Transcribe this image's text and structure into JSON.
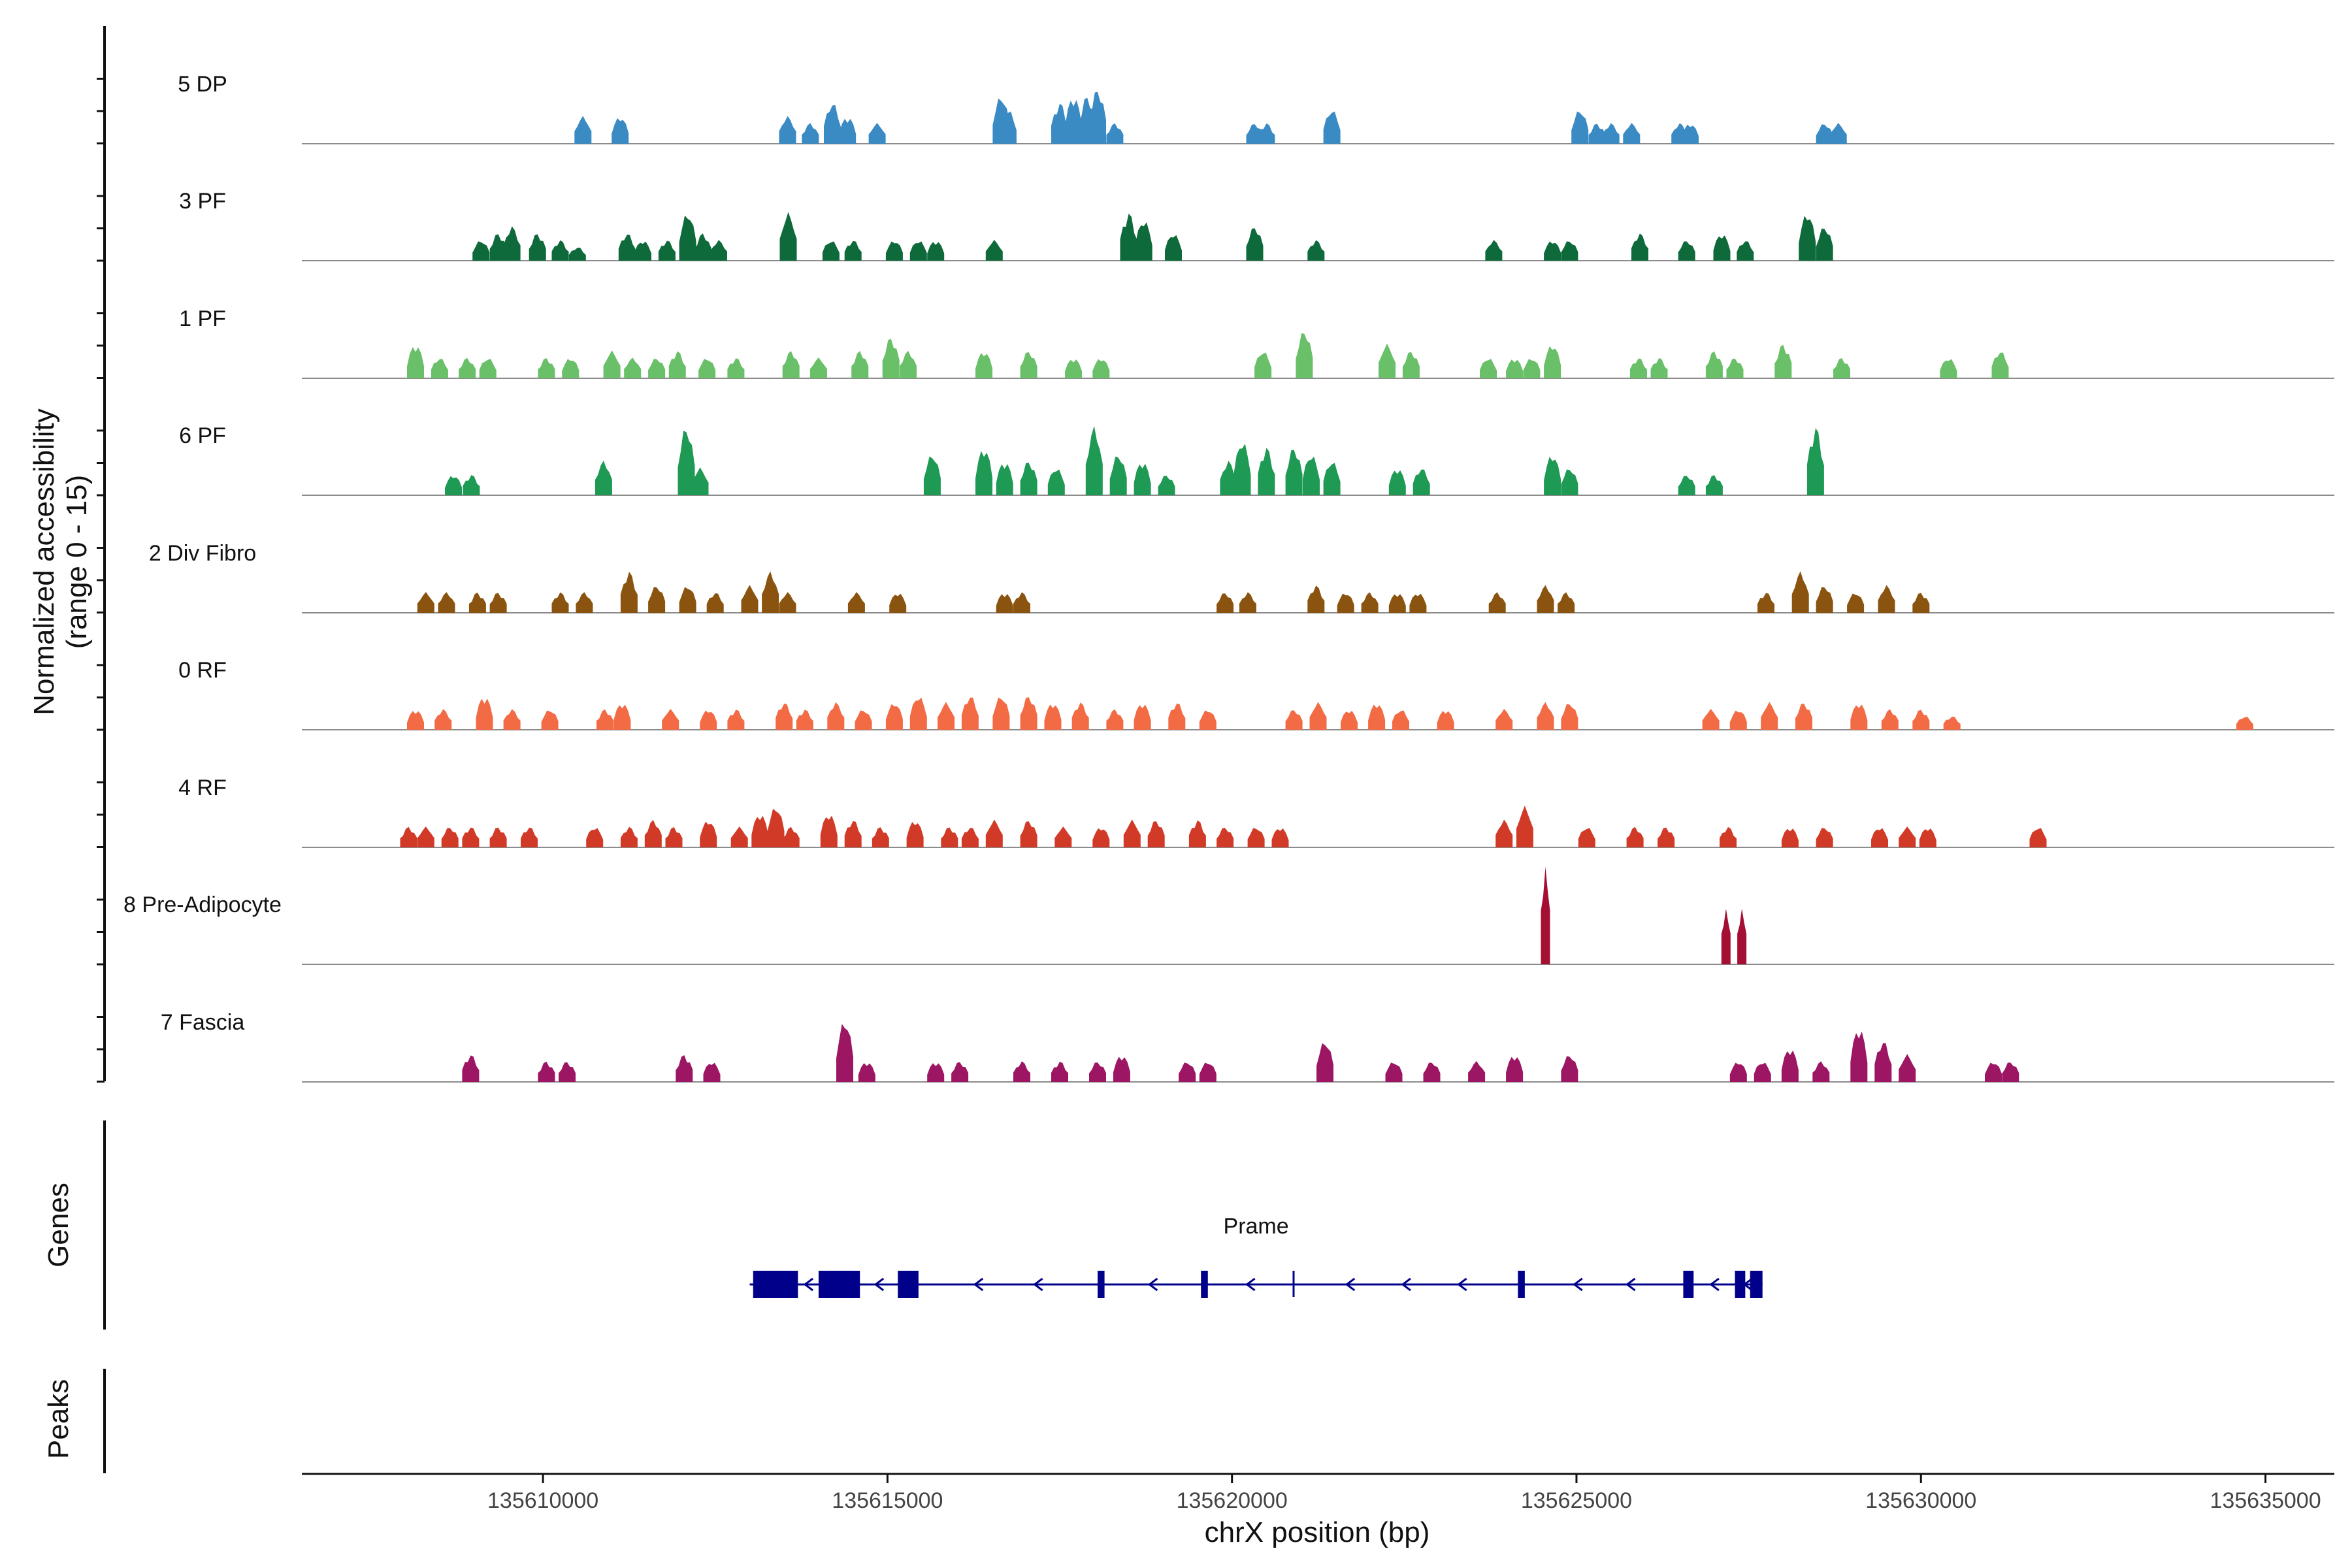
{
  "chart_data": {
    "type": "area",
    "title": "",
    "ylabel_line1": "Normalized accessibility",
    "ylabel_line2": "(range 0 - 15)",
    "xlabel": "chrX position (bp)",
    "ylim": [
      0,
      15
    ],
    "xlim": [
      135606500,
      135636000
    ],
    "x_ticks": [
      135610000,
      135615000,
      135620000,
      135625000,
      135630000,
      135635000
    ],
    "x_tick_labels": [
      "135610000",
      "135615000",
      "135620000",
      "135625000",
      "135630000",
      "135635000"
    ],
    "tracks": [
      {
        "name": "5 DP",
        "color": "#3a8ac4",
        "peaks": [
          [
            135610580,
            4
          ],
          [
            135611120,
            4
          ],
          [
            135613550,
            4
          ],
          [
            135613880,
            3
          ],
          [
            135614200,
            6
          ],
          [
            135614420,
            4
          ],
          [
            135614850,
            3
          ],
          [
            135616650,
            7
          ],
          [
            135616750,
            5
          ],
          [
            135617500,
            6
          ],
          [
            135617700,
            7
          ],
          [
            135617900,
            7
          ],
          [
            135618050,
            8
          ],
          [
            135618300,
            3
          ],
          [
            135620330,
            3
          ],
          [
            135620500,
            3
          ],
          [
            135621450,
            5
          ],
          [
            135625050,
            5
          ],
          [
            135625300,
            3
          ],
          [
            135625500,
            3
          ],
          [
            135625800,
            3
          ],
          [
            135626500,
            3
          ],
          [
            135626650,
            3
          ],
          [
            135628600,
            3
          ],
          [
            135628800,
            3
          ]
        ]
      },
      {
        "name": "3 PF",
        "color": "#0e6a3a",
        "peaks": [
          [
            135609100,
            3
          ],
          [
            135609350,
            4
          ],
          [
            135609550,
            5
          ],
          [
            135609920,
            4
          ],
          [
            135610250,
            3
          ],
          [
            135610500,
            2
          ],
          [
            135611220,
            4
          ],
          [
            135611450,
            3
          ],
          [
            135611800,
            3
          ],
          [
            135612100,
            7
          ],
          [
            135612320,
            4
          ],
          [
            135612550,
            3
          ],
          [
            135613560,
            7
          ],
          [
            135614180,
            3
          ],
          [
            135614500,
            3
          ],
          [
            135615100,
            3
          ],
          [
            135615450,
            3
          ],
          [
            135615700,
            3
          ],
          [
            135616550,
            3
          ],
          [
            135618500,
            7
          ],
          [
            135618720,
            6
          ],
          [
            135619150,
            4
          ],
          [
            135620330,
            5
          ],
          [
            135621220,
            3
          ],
          [
            135623800,
            3
          ],
          [
            135624650,
            3
          ],
          [
            135624900,
            3
          ],
          [
            135625920,
            4
          ],
          [
            135626600,
            3
          ],
          [
            135627110,
            4
          ],
          [
            135627450,
            3
          ],
          [
            135628350,
            7
          ],
          [
            135628600,
            5
          ]
        ]
      },
      {
        "name": "1 PF",
        "color": "#6abf69",
        "peaks": [
          [
            135608150,
            5
          ],
          [
            135608500,
            3
          ],
          [
            135608900,
            3
          ],
          [
            135609200,
            3
          ],
          [
            135610050,
            3
          ],
          [
            135610400,
            3
          ],
          [
            135611000,
            4
          ],
          [
            135611300,
            3
          ],
          [
            135611650,
            3
          ],
          [
            135611950,
            4
          ],
          [
            135612380,
            3
          ],
          [
            135612800,
            3
          ],
          [
            135613600,
            4
          ],
          [
            135614000,
            3
          ],
          [
            135614600,
            4
          ],
          [
            135615050,
            6
          ],
          [
            135615300,
            4
          ],
          [
            135616400,
            4
          ],
          [
            135617050,
            4
          ],
          [
            135617700,
            3
          ],
          [
            135618100,
            3
          ],
          [
            135620450,
            4
          ],
          [
            135621050,
            7
          ],
          [
            135622250,
            5
          ],
          [
            135622600,
            4
          ],
          [
            135623720,
            3
          ],
          [
            135624100,
            3
          ],
          [
            135624350,
            3
          ],
          [
            135624650,
            5
          ],
          [
            135625900,
            3
          ],
          [
            135626200,
            3
          ],
          [
            135627000,
            4
          ],
          [
            135627300,
            3
          ],
          [
            135628000,
            5
          ],
          [
            135628850,
            3
          ],
          [
            135630400,
            3
          ],
          [
            135631150,
            4
          ]
        ]
      },
      {
        "name": "6 PF",
        "color": "#1e9a55",
        "peaks": [
          [
            135608700,
            3
          ],
          [
            135608960,
            3
          ],
          [
            135610880,
            5
          ],
          [
            135612080,
            10
          ],
          [
            135612280,
            4
          ],
          [
            135615650,
            6
          ],
          [
            135616400,
            7
          ],
          [
            135616700,
            5
          ],
          [
            135617050,
            5
          ],
          [
            135617450,
            4
          ],
          [
            135618000,
            10
          ],
          [
            135618350,
            6
          ],
          [
            135618700,
            5
          ],
          [
            135619050,
            3
          ],
          [
            135619950,
            5
          ],
          [
            135620150,
            8
          ],
          [
            135620500,
            7
          ],
          [
            135620900,
            7
          ],
          [
            135621150,
            6
          ],
          [
            135621450,
            5
          ],
          [
            135622400,
            4
          ],
          [
            135622750,
            4
          ],
          [
            135624650,
            6
          ],
          [
            135624900,
            4
          ],
          [
            135626600,
            3
          ],
          [
            135627000,
            3
          ],
          [
            135628470,
            10
          ]
        ]
      },
      {
        "name": "2 Div Fibro",
        "color": "#8a5410",
        "peaks": [
          [
            135608300,
            3
          ],
          [
            135608600,
            3
          ],
          [
            135609050,
            3
          ],
          [
            135609350,
            3
          ],
          [
            135610250,
            3
          ],
          [
            135610600,
            3
          ],
          [
            135611250,
            6
          ],
          [
            135611650,
            4
          ],
          [
            135612100,
            4
          ],
          [
            135612500,
            3
          ],
          [
            135613000,
            4
          ],
          [
            135613300,
            6
          ],
          [
            135613550,
            3
          ],
          [
            135614550,
            3
          ],
          [
            135615150,
            3
          ],
          [
            135616700,
            3
          ],
          [
            135616950,
            3
          ],
          [
            135619900,
            3
          ],
          [
            135620230,
            3
          ],
          [
            135621220,
            4
          ],
          [
            135621650,
            3
          ],
          [
            135622000,
            3
          ],
          [
            135622400,
            3
          ],
          [
            135622700,
            3
          ],
          [
            135623850,
            3
          ],
          [
            135624550,
            4
          ],
          [
            135624850,
            3
          ],
          [
            135627750,
            3
          ],
          [
            135628250,
            6
          ],
          [
            135628600,
            4
          ],
          [
            135629050,
            3
          ],
          [
            135629500,
            4
          ],
          [
            135630000,
            3
          ]
        ]
      },
      {
        "name": "0 RF",
        "color": "#f26b45",
        "peaks": [
          [
            135608150,
            3
          ],
          [
            135608550,
            3
          ],
          [
            135609150,
            5
          ],
          [
            135609550,
            3
          ],
          [
            135610100,
            3
          ],
          [
            135610900,
            3
          ],
          [
            135611150,
            4
          ],
          [
            135611850,
            3
          ],
          [
            135612400,
            3
          ],
          [
            135612800,
            3
          ],
          [
            135613500,
            4
          ],
          [
            135613800,
            3
          ],
          [
            135614250,
            4
          ],
          [
            135614650,
            3
          ],
          [
            135615100,
            4
          ],
          [
            135615450,
            5
          ],
          [
            135615850,
            4
          ],
          [
            135616200,
            5
          ],
          [
            135616650,
            5
          ],
          [
            135617050,
            5
          ],
          [
            135617400,
            4
          ],
          [
            135617800,
            4
          ],
          [
            135618300,
            3
          ],
          [
            135618700,
            4
          ],
          [
            135619200,
            4
          ],
          [
            135619650,
            3
          ],
          [
            135620900,
            3
          ],
          [
            135621250,
            4
          ],
          [
            135621700,
            3
          ],
          [
            135622100,
            4
          ],
          [
            135622450,
            3
          ],
          [
            135623100,
            3
          ],
          [
            135623950,
            3
          ],
          [
            135624550,
            4
          ],
          [
            135624900,
            4
          ],
          [
            135626950,
            3
          ],
          [
            135627350,
            3
          ],
          [
            135627800,
            4
          ],
          [
            135628300,
            4
          ],
          [
            135629100,
            4
          ],
          [
            135629550,
            3
          ],
          [
            135630000,
            3
          ],
          [
            135630450,
            2
          ],
          [
            135634700,
            2
          ]
        ]
      },
      {
        "name": "4 RF",
        "color": "#d23a28",
        "peaks": [
          [
            135608050,
            3
          ],
          [
            135608300,
            3
          ],
          [
            135608650,
            3
          ],
          [
            135608950,
            3
          ],
          [
            135609350,
            3
          ],
          [
            135609800,
            3
          ],
          [
            135610750,
            3
          ],
          [
            135611250,
            3
          ],
          [
            135611600,
            4
          ],
          [
            135611900,
            3
          ],
          [
            135612400,
            4
          ],
          [
            135612850,
            3
          ],
          [
            135613150,
            5
          ],
          [
            135613380,
            6
          ],
          [
            135613600,
            3
          ],
          [
            135614150,
            5
          ],
          [
            135614500,
            4
          ],
          [
            135614900,
            3
          ],
          [
            135615400,
            4
          ],
          [
            135615900,
            3
          ],
          [
            135616200,
            3
          ],
          [
            135616550,
            4
          ],
          [
            135617050,
            4
          ],
          [
            135617550,
            3
          ],
          [
            135618100,
            3
          ],
          [
            135618550,
            4
          ],
          [
            135618900,
            4
          ],
          [
            135619500,
            4
          ],
          [
            135619900,
            3
          ],
          [
            135620350,
            3
          ],
          [
            135620700,
            3
          ],
          [
            135623950,
            4
          ],
          [
            135624250,
            6
          ],
          [
            135625150,
            3
          ],
          [
            135625850,
            3
          ],
          [
            135626300,
            3
          ],
          [
            135627200,
            3
          ],
          [
            135628100,
            3
          ],
          [
            135628600,
            3
          ],
          [
            135629400,
            3
          ],
          [
            135629800,
            3
          ],
          [
            135630100,
            3
          ],
          [
            135631700,
            3
          ]
        ]
      },
      {
        "name": "8 Pre-Adipocyte",
        "color": "#a50f34",
        "peaks": [
          [
            135624550,
            14
          ],
          [
            135627170,
            8
          ],
          [
            135627400,
            8
          ]
        ]
      },
      {
        "name": "7 Fascia",
        "color": "#9c1663",
        "peaks": [
          [
            135608950,
            4
          ],
          [
            135610050,
            3
          ],
          [
            135610350,
            3
          ],
          [
            135612050,
            4
          ],
          [
            135612450,
            3
          ],
          [
            135614380,
            9
          ],
          [
            135614700,
            3
          ],
          [
            135615700,
            3
          ],
          [
            135616050,
            3
          ],
          [
            135616950,
            3
          ],
          [
            135617500,
            3
          ],
          [
            135618050,
            3
          ],
          [
            135618400,
            4
          ],
          [
            135619350,
            3
          ],
          [
            135619650,
            3
          ],
          [
            135621350,
            6
          ],
          [
            135622350,
            3
          ],
          [
            135622900,
            3
          ],
          [
            135623550,
            3
          ],
          [
            135624100,
            4
          ],
          [
            135624900,
            4
          ],
          [
            135627350,
            3
          ],
          [
            135627700,
            3
          ],
          [
            135628100,
            5
          ],
          [
            135628550,
            3
          ],
          [
            135629100,
            8
          ],
          [
            135629450,
            6
          ],
          [
            135629800,
            4
          ],
          [
            135631050,
            3
          ],
          [
            135631300,
            3
          ]
        ]
      }
    ],
    "gene_track_label": "Genes",
    "gene": {
      "name": "Prame",
      "color": "#00008b",
      "strand": "-",
      "start": 135613000,
      "end": 135627700,
      "exons": [
        [
          135613050,
          135613700
        ],
        [
          135614000,
          135614600
        ],
        [
          135615150,
          135615450
        ],
        [
          135618050,
          135618150
        ],
        [
          135619550,
          135619650
        ],
        [
          135620880,
          135620900
        ],
        [
          135624150,
          135624250
        ],
        [
          135626550,
          135626700
        ],
        [
          135627300,
          135627450
        ],
        [
          135627520,
          135627700
        ]
      ]
    },
    "peaks_track_label": "Peaks"
  }
}
